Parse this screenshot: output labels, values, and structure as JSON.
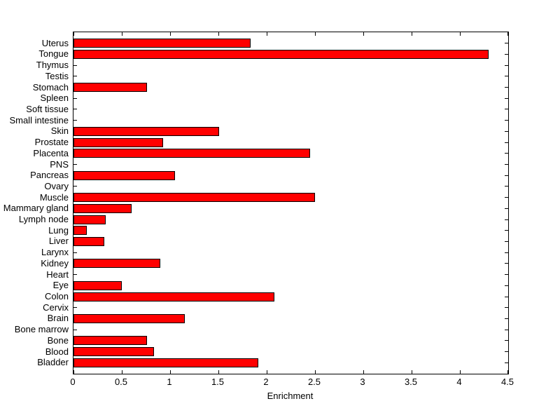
{
  "chart_data": {
    "type": "bar",
    "orientation": "horizontal",
    "title": "",
    "xlabel": "Enrichment",
    "ylabel": "",
    "categories": [
      "Uterus",
      "Tongue",
      "Thymus",
      "Testis",
      "Stomach",
      "Spleen",
      "Soft tissue",
      "Small intestine",
      "Skin",
      "Prostate",
      "Placenta",
      "PNS",
      "Pancreas",
      "Ovary",
      "Muscle",
      "Mammary gland",
      "Lymph node",
      "Lung",
      "Liver",
      "Larynx",
      "Kidney",
      "Heart",
      "Eye",
      "Colon",
      "Cervix",
      "Brain",
      "Bone marrow",
      "Bone",
      "Blood",
      "Bladder"
    ],
    "values": [
      1.83,
      4.3,
      0,
      0,
      0.76,
      0,
      0,
      0,
      1.51,
      0.93,
      2.45,
      0,
      1.05,
      0,
      2.5,
      0.6,
      0.33,
      0.14,
      0.32,
      0,
      0.9,
      0,
      0.5,
      2.08,
      0,
      1.15,
      0,
      0.76,
      0.83,
      1.91
    ],
    "xlim": [
      0,
      4.5
    ],
    "xticks": [
      0,
      0.5,
      1,
      1.5,
      2,
      2.5,
      3,
      3.5,
      4,
      4.5
    ],
    "xtick_labels": [
      "0",
      "0.5",
      "1",
      "1.5",
      "2",
      "2.5",
      "3",
      "3.5",
      "4",
      "4.5"
    ],
    "bar_color": "#ff0000",
    "bar_edge_color": "#000000",
    "axis_color": "#000000",
    "background_color": "#ffffff",
    "grid": false,
    "legend": "none"
  }
}
